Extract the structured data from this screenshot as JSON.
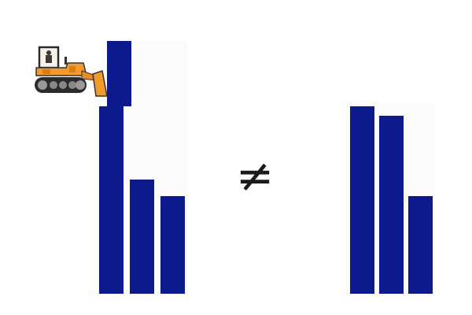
{
  "diagram": {
    "symbol": "≠",
    "bar_color": "#0d1a8c",
    "left_group": {
      "bars": [
        {
          "name": "left-bar-1",
          "value": 1.0
        },
        {
          "name": "left-bar-2",
          "value": 0.61
        },
        {
          "name": "left-bar-3",
          "value": 0.52
        }
      ],
      "pushed_block": {
        "name": "displaced-block",
        "value": 0.35
      }
    },
    "right_group": {
      "bars": [
        {
          "name": "right-bar-1",
          "value": 1.0
        },
        {
          "name": "right-bar-2",
          "value": 0.95
        },
        {
          "name": "right-bar-3",
          "value": 0.52
        }
      ]
    },
    "icon": "bulldozer-icon"
  }
}
